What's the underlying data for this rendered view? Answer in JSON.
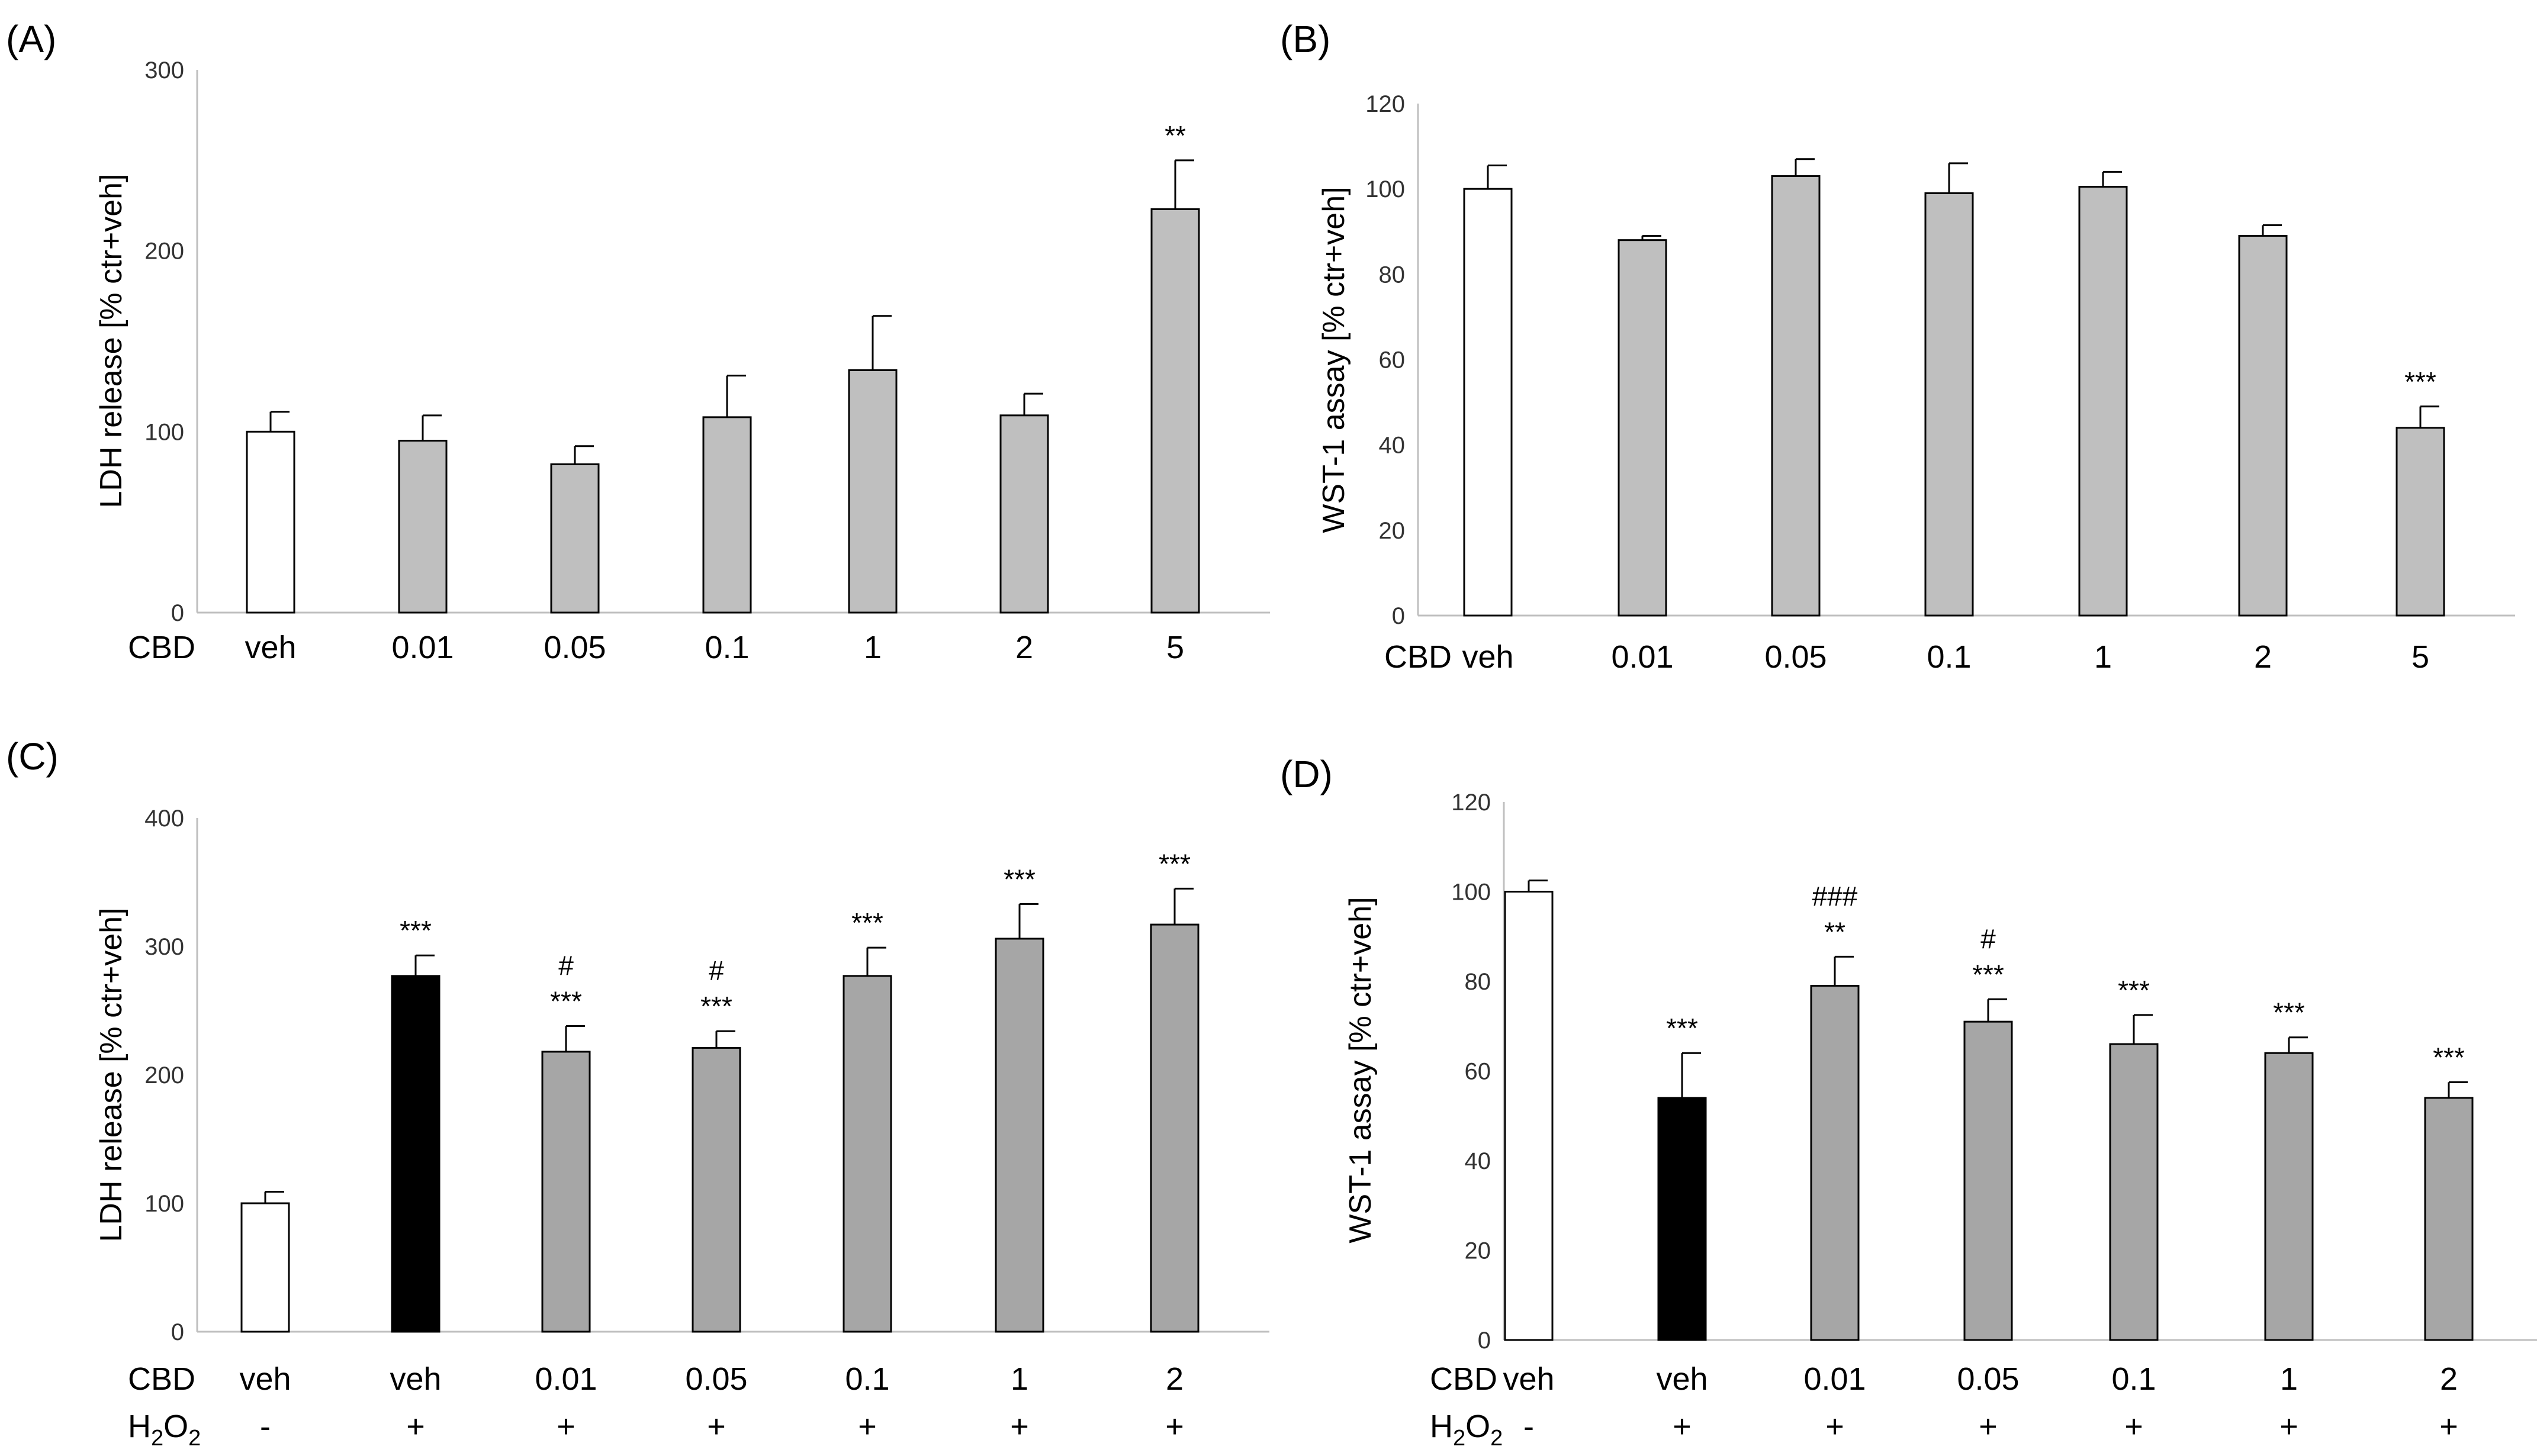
{
  "figure": {
    "colors": {
      "veh": "#ffffff",
      "h2o2_veh": "#000000",
      "treatment_ab": "#bfbfbf",
      "treatment_cd": "#a6a6a6",
      "stroke": "#000000",
      "axis": "#bfbfbf"
    }
  },
  "chart_data": [
    {
      "panel": "(A)",
      "type": "bar",
      "ylabel": "LDH release [% ctr+veh]",
      "ylim": [
        0,
        300
      ],
      "yticks": [
        0,
        100,
        200,
        300
      ],
      "row_labels": {
        "cbd": "CBD"
      },
      "categories": [
        "veh",
        "0.01",
        "0.05",
        "0.1",
        "1",
        "2",
        "5"
      ],
      "values": [
        100,
        95,
        82,
        108,
        134,
        109,
        223
      ],
      "errors": [
        11,
        14,
        10,
        23,
        30,
        12,
        27
      ],
      "fills": [
        "veh",
        "treatment_ab",
        "treatment_ab",
        "treatment_ab",
        "treatment_ab",
        "treatment_ab",
        "treatment_ab"
      ],
      "annotations": [
        "",
        "",
        "",
        "",
        "",
        "",
        "**"
      ]
    },
    {
      "panel": "(B)",
      "type": "bar",
      "ylabel": "WST-1 assay [% ctr+veh]",
      "ylim": [
        0,
        120
      ],
      "yticks": [
        0,
        20,
        40,
        60,
        80,
        100,
        120
      ],
      "row_labels": {
        "cbd": "CBD"
      },
      "categories": [
        "veh",
        "0.01",
        "0.05",
        "0.1",
        "1",
        "2",
        "5"
      ],
      "values": [
        100,
        88,
        103,
        99,
        100.5,
        89,
        44
      ],
      "errors": [
        5.5,
        1,
        4,
        7,
        3.5,
        2.5,
        5
      ],
      "fills": [
        "veh",
        "treatment_ab",
        "treatment_ab",
        "treatment_ab",
        "treatment_ab",
        "treatment_ab",
        "treatment_ab"
      ],
      "annotations": [
        "",
        "",
        "",
        "",
        "",
        "",
        "***"
      ]
    },
    {
      "panel": "(C)",
      "type": "bar",
      "ylabel": "LDH release [% ctr+veh]",
      "ylim": [
        0,
        400
      ],
      "yticks": [
        0,
        100,
        200,
        300,
        400
      ],
      "row_labels": {
        "cbd": "CBD",
        "h2o2": "H",
        "h2o2_sub": "2",
        "h2o2_mid": "O",
        "h2o2_sub2": "2"
      },
      "categories": [
        "veh",
        "veh",
        "0.01",
        "0.05",
        "0.1",
        "1",
        "2"
      ],
      "h2o2": [
        "-",
        "+",
        "+",
        "+",
        "+",
        "+",
        "+"
      ],
      "values": [
        100,
        277,
        218,
        221,
        277,
        306,
        317
      ],
      "errors": [
        9,
        16,
        20,
        13,
        22,
        27,
        28
      ],
      "fills": [
        "veh",
        "h2o2_veh",
        "treatment_cd",
        "treatment_cd",
        "treatment_cd",
        "treatment_cd",
        "treatment_cd"
      ],
      "annotations": [
        "",
        "***",
        "***",
        "***",
        "***",
        "***",
        "***"
      ],
      "annotations2": [
        "",
        "",
        "#",
        "#",
        "",
        "",
        ""
      ]
    },
    {
      "panel": "(D)",
      "type": "bar",
      "ylabel": "WST-1 assay [% ctr+veh]",
      "ylim": [
        0,
        120
      ],
      "yticks": [
        0,
        20,
        40,
        60,
        80,
        100,
        120
      ],
      "row_labels": {
        "cbd": "CBD",
        "h2o2": "H",
        "h2o2_sub": "2",
        "h2o2_mid": "O",
        "h2o2_sub2": "2"
      },
      "categories": [
        "veh",
        "veh",
        "0.01",
        "0.05",
        "0.1",
        "1",
        "2"
      ],
      "h2o2": [
        "-",
        "+",
        "+",
        "+",
        "+",
        "+",
        "+"
      ],
      "values": [
        100,
        54,
        79,
        71,
        66,
        64,
        54
      ],
      "errors": [
        2.5,
        10,
        6.5,
        5,
        6.5,
        3.5,
        3.5
      ],
      "fills": [
        "veh",
        "h2o2_veh",
        "treatment_cd",
        "treatment_cd",
        "treatment_cd",
        "treatment_cd",
        "treatment_cd"
      ],
      "annotations": [
        "",
        "***",
        "**",
        "***",
        "***",
        "***",
        "***"
      ],
      "annotations2": [
        "",
        "",
        "###",
        "#",
        "",
        "",
        ""
      ]
    }
  ]
}
